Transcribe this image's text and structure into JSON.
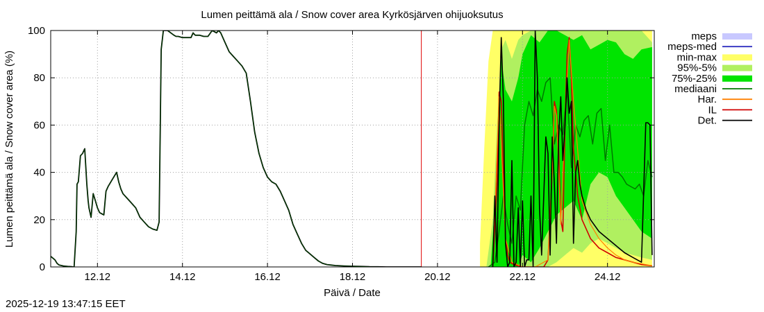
{
  "chart_data": {
    "type": "line",
    "title": "Lumen peittämä ala / Snow cover area Kyrkösjärven ohijuoksutus",
    "xlabel": "Päivä / Date",
    "ylabel": "Lumen peittämä ala / Snow cover area (%)",
    "xlim": [
      10.9,
      25.1
    ],
    "ylim": [
      0,
      100
    ],
    "x_ticks": [
      {
        "v": 12,
        "label": "12.12"
      },
      {
        "v": 14,
        "label": "14.12"
      },
      {
        "v": 16,
        "label": "16.12"
      },
      {
        "v": 18,
        "label": "18.12"
      },
      {
        "v": 20,
        "label": "20.12"
      },
      {
        "v": 22,
        "label": "22.12"
      },
      {
        "v": 24,
        "label": "24.12"
      }
    ],
    "y_ticks": [
      {
        "v": 0,
        "label": "0"
      },
      {
        "v": 20,
        "label": "20"
      },
      {
        "v": 40,
        "label": "40"
      },
      {
        "v": 60,
        "label": "60"
      },
      {
        "v": 80,
        "label": "80"
      },
      {
        "v": 100,
        "label": "100"
      }
    ],
    "grid": true,
    "forecast_start": 19.62,
    "legend": {
      "placement": "right",
      "entries": [
        {
          "label": "meps",
          "color": "#c8c8ff",
          "kind": "box"
        },
        {
          "label": "meps-med",
          "color": "#3030c0",
          "kind": "line"
        },
        {
          "label": "min-max",
          "color": "#ffff66",
          "kind": "box"
        },
        {
          "label": "95%-5%",
          "color": "#b0f060",
          "kind": "box"
        },
        {
          "label": "75%-25%",
          "color": "#00e400",
          "kind": "box"
        },
        {
          "label": "mediaani",
          "color": "#007800",
          "kind": "line"
        },
        {
          "label": "Har.",
          "color": "#ff8000",
          "kind": "line"
        },
        {
          "label": "IL",
          "color": "#d00000",
          "kind": "line"
        },
        {
          "label": "Det.",
          "color": "#000000",
          "kind": "line"
        }
      ]
    },
    "series": [
      {
        "name": "observed",
        "color": "#000000",
        "x": [
          10.9,
          11.0,
          11.05,
          11.1,
          11.2,
          11.3,
          11.4,
          11.42,
          11.45,
          11.5,
          11.52,
          11.55,
          11.6,
          11.65,
          11.7,
          11.75,
          11.78,
          11.8,
          11.85,
          11.9,
          11.95,
          12.0,
          12.05,
          12.1,
          12.15,
          12.2,
          12.25,
          12.35,
          12.45,
          12.5,
          12.55,
          12.6,
          12.7,
          12.8,
          12.9,
          13.0,
          13.1,
          13.2,
          13.3,
          13.4,
          13.45,
          13.5,
          13.55,
          13.65,
          13.8,
          13.85,
          13.9,
          14.0,
          14.1,
          14.2,
          14.25,
          14.3,
          14.4,
          14.5,
          14.6,
          14.7,
          14.75,
          14.8,
          14.85,
          14.9,
          15.0,
          15.1,
          15.2,
          15.3,
          15.4,
          15.5,
          15.6,
          15.7,
          15.8,
          15.9,
          16.0,
          16.1,
          16.2,
          16.3,
          16.4,
          16.5,
          16.6,
          16.7,
          16.8,
          16.9,
          17.0,
          17.1,
          17.2,
          17.3,
          17.4,
          17.5,
          17.6,
          17.8,
          18.0,
          18.2,
          18.4,
          18.6,
          18.8,
          19.0,
          19.2,
          19.62
        ],
        "values": [
          4.5,
          3,
          1.5,
          0.8,
          0.4,
          0.2,
          0.1,
          0,
          0,
          15,
          35,
          36,
          47,
          48,
          50,
          35,
          28,
          25,
          21,
          31,
          28,
          25,
          23,
          22.5,
          22,
          32,
          34,
          37,
          40,
          36,
          33,
          31,
          29,
          27,
          25,
          21,
          19,
          17,
          16,
          15.5,
          19,
          92,
          100,
          100,
          98,
          97.5,
          97.5,
          97,
          97,
          97,
          99,
          98,
          98,
          97.5,
          97.5,
          100,
          99.5,
          99,
          100,
          99,
          95,
          91,
          89,
          87,
          85,
          82,
          70,
          57,
          48,
          42,
          38,
          36,
          35,
          32,
          28,
          24,
          18,
          14,
          10,
          7,
          5.5,
          4,
          2.5,
          1.5,
          1,
          0.8,
          0.6,
          0.4,
          0.3,
          0.2,
          0.1,
          0.05,
          0,
          0,
          0,
          0
        ]
      },
      {
        "name": "mediaani",
        "color": "#007800",
        "x": [
          21.2,
          21.35,
          21.45,
          21.55,
          21.65,
          21.75,
          21.85,
          21.95,
          22.05,
          22.15,
          22.25,
          22.35,
          22.45,
          22.55,
          22.65,
          22.75,
          22.85,
          22.95,
          23.05,
          23.15,
          23.25,
          23.35,
          23.45,
          23.55,
          23.65,
          23.75,
          23.85,
          23.95,
          24.05,
          24.15,
          24.25,
          24.35,
          24.45,
          24.55,
          24.65,
          24.75,
          24.85,
          24.95,
          25.05
        ],
        "values": [
          0,
          2,
          15,
          30,
          18,
          10,
          30,
          24,
          60,
          70,
          64,
          75,
          70,
          78,
          80,
          52,
          60,
          56,
          75,
          42,
          60,
          55,
          62,
          64,
          52,
          65,
          67,
          45,
          60,
          40,
          40,
          38,
          35,
          34,
          33,
          35,
          30,
          45,
          38
        ]
      },
      {
        "name": "IL",
        "color": "#d00000",
        "x": [
          21.3,
          21.4,
          21.45,
          21.5,
          21.55,
          21.6,
          21.65,
          21.7,
          21.8,
          21.9,
          22.0,
          22.1,
          22.2,
          22.3,
          22.4,
          22.5,
          22.6,
          22.7,
          22.75,
          22.8,
          22.85,
          22.9,
          22.95,
          23.0,
          23.05,
          23.1,
          23.15,
          23.2,
          23.3,
          23.4,
          23.6,
          23.8,
          24.0,
          24.2,
          24.4,
          24.6,
          24.8,
          25.05
        ],
        "values": [
          0,
          35,
          74,
          70,
          40,
          12,
          5,
          2,
          1,
          0.5,
          0,
          0,
          0,
          0,
          0,
          0,
          3,
          40,
          70,
          66,
          50,
          20,
          15,
          60,
          90,
          97,
          80,
          50,
          30,
          20,
          12,
          8,
          6,
          4,
          3,
          2,
          1,
          0.5
        ]
      },
      {
        "name": "Har.",
        "color": "#ff8000",
        "x": [
          21.3,
          21.45,
          21.6,
          21.75,
          22.0,
          22.3,
          22.6,
          22.7,
          22.75,
          22.8,
          22.9,
          23.0,
          23.1,
          23.2,
          23.4,
          23.6,
          23.8,
          24.0,
          24.2,
          24.4,
          24.6,
          25.05
        ],
        "values": [
          0,
          72,
          12,
          2,
          0,
          0,
          3,
          40,
          68,
          64,
          18,
          62,
          96,
          70,
          28,
          18,
          12,
          8,
          5,
          3,
          2,
          0.5
        ]
      },
      {
        "name": "Det.",
        "color": "#000000",
        "x": [
          21.3,
          21.35,
          21.4,
          21.45,
          21.5,
          21.55,
          21.6,
          21.65,
          21.7,
          21.75,
          21.8,
          21.85,
          21.9,
          21.95,
          22.0,
          22.05,
          22.1,
          22.15,
          22.2,
          22.25,
          22.3,
          22.35,
          22.4,
          22.45,
          22.5,
          22.55,
          22.6,
          22.65,
          22.7,
          22.75,
          22.8,
          22.85,
          22.9,
          22.95,
          23.0,
          23.05,
          23.1,
          23.15,
          23.2,
          23.25,
          23.3,
          23.35,
          23.4,
          23.5,
          23.6,
          23.8,
          24.0,
          24.2,
          24.4,
          24.6,
          24.8,
          24.9,
          24.95,
          25.0,
          25.05
        ],
        "values": [
          0,
          30,
          2,
          60,
          97,
          70,
          10,
          0,
          2,
          45,
          0,
          2,
          25,
          0,
          28,
          0,
          3,
          3,
          30,
          0,
          100,
          80,
          25,
          5,
          30,
          55,
          48,
          5,
          55,
          35,
          10,
          55,
          72,
          45,
          60,
          80,
          65,
          70,
          10,
          40,
          45,
          35,
          30,
          24,
          20,
          15,
          12,
          9,
          6,
          4,
          2,
          61,
          61,
          60,
          5
        ]
      }
    ],
    "bands": [
      {
        "name": "min-max",
        "color": "#ffff66",
        "x": [
          21.0,
          21.1,
          21.2,
          21.3,
          21.5,
          21.7,
          22.0,
          22.3,
          22.6,
          23.0,
          23.5,
          24.0,
          24.5,
          25.05
        ],
        "upper": [
          10,
          50,
          87,
          100,
          100,
          100,
          100,
          100,
          100,
          100,
          100,
          100,
          100,
          100
        ],
        "lower": [
          0,
          0,
          0,
          0,
          0,
          0,
          0,
          0,
          0,
          0,
          0,
          0,
          0,
          0
        ]
      },
      {
        "name": "95%-5%",
        "color": "#b0f060",
        "x": [
          21.15,
          21.3,
          21.4,
          21.5,
          21.6,
          21.75,
          21.9,
          22.0,
          22.2,
          22.4,
          22.6,
          22.8,
          23.0,
          23.2,
          23.4,
          23.6,
          23.8,
          24.0,
          24.2,
          24.4,
          24.6,
          24.8,
          25.05
        ],
        "upper": [
          0,
          20,
          60,
          92,
          96,
          88,
          96,
          98,
          100,
          100,
          100,
          100,
          100,
          100,
          100,
          100,
          100,
          100,
          100,
          100,
          100,
          100,
          95
        ],
        "lower": [
          0,
          0,
          0,
          0,
          0,
          0,
          0,
          0,
          0,
          0,
          0,
          2,
          5,
          8,
          6,
          10,
          12,
          10,
          8,
          6,
          5,
          4,
          3
        ]
      },
      {
        "name": "75%-25%",
        "color": "#00e400",
        "x": [
          21.25,
          21.4,
          21.5,
          21.6,
          21.75,
          21.9,
          22.0,
          22.2,
          22.4,
          22.6,
          22.8,
          23.0,
          23.2,
          23.4,
          23.6,
          23.8,
          24.0,
          24.2,
          24.4,
          24.6,
          24.8,
          25.05
        ],
        "upper": [
          0,
          40,
          88,
          75,
          70,
          80,
          90,
          98,
          95,
          100,
          100,
          98,
          96,
          98,
          92,
          94,
          96,
          95,
          90,
          88,
          92,
          93
        ],
        "lower": [
          0,
          0,
          0,
          0,
          0,
          0,
          5,
          2,
          8,
          15,
          22,
          25,
          28,
          20,
          35,
          40,
          38,
          30,
          25,
          20,
          15,
          12
        ]
      }
    ]
  },
  "footer": {
    "timestamp": "2025-12-19 13:47:15 EET"
  }
}
